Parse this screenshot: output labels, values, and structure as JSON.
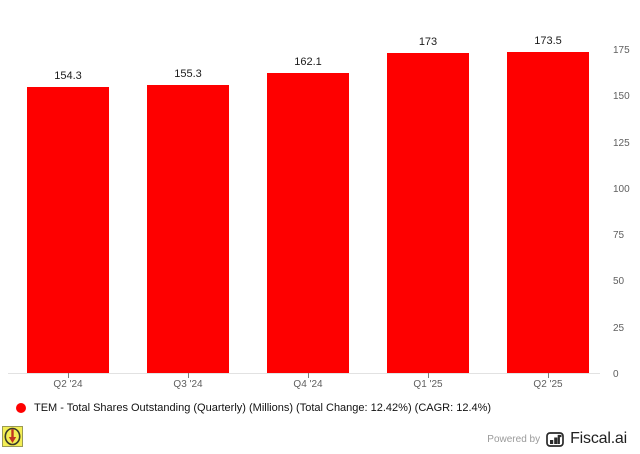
{
  "chart_data": {
    "type": "bar",
    "categories": [
      "Q2 '24",
      "Q3 '24",
      "Q4 '24",
      "Q1 '25",
      "Q2 '25"
    ],
    "values": [
      154.3,
      155.3,
      162.1,
      173,
      173.5
    ],
    "value_labels": [
      "154.3",
      "155.3",
      "162.1",
      "173",
      "173.5"
    ],
    "series_name": "TEM - Total Shares Outstanding (Quarterly) (Millions)",
    "title": "",
    "xlabel": "",
    "ylabel": "",
    "ylim": [
      0,
      175
    ],
    "y_ticks": [
      0,
      25,
      50,
      75,
      100,
      125,
      150,
      175
    ],
    "y_axis_side": "right",
    "grid": false,
    "legend_position": "bottom",
    "bar_color": "#fe0000"
  },
  "legend": {
    "label": "TEM - Total Shares Outstanding (Quarterly) (Millions) (Total Change: 12.42%) (CAGR: 12.4%)",
    "marker_color": "#fe0000"
  },
  "footer": {
    "powered_by": "Powered by",
    "brand": "Fiscal.ai"
  },
  "icons": {
    "download_badge": "download-badge-icon",
    "logo": "fiscal-logo-icon"
  },
  "colors": {
    "bar": "#fe0000",
    "axis_line": "#e2e2e2",
    "axis_text": "#5f5f5f",
    "value_text": "#1b1b1b",
    "legend_text": "#121212",
    "powered_by_text": "#9a9a9a",
    "brand_text": "#1f1f1f",
    "badge_yellow": "#f3ee54"
  }
}
